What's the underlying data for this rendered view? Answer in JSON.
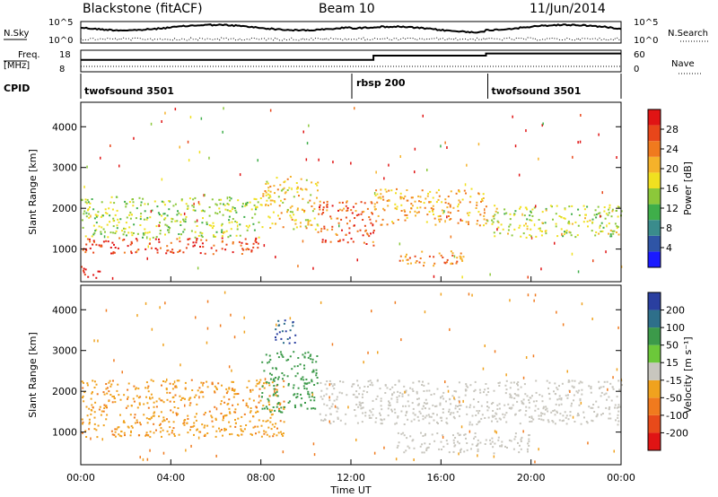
{
  "header": {
    "station": "Blackstone (fitACF)",
    "beam": "Beam 10",
    "date": "11/Jun/2014"
  },
  "noise_panel": {
    "left_label": "N.Sky",
    "right_label": "N.Search",
    "left_ticks": [
      "10^5",
      "10^0"
    ],
    "right_ticks": [
      "10^5",
      "10^0"
    ]
  },
  "freq_panel": {
    "left_label_line1": "Freq.",
    "left_label_line2": "[MHz]",
    "right_label": "Nave",
    "left_ticks": [
      "18",
      "8"
    ],
    "right_ticks": [
      "60",
      "0"
    ],
    "freq_steps": [
      {
        "from_hour": 0,
        "to_hour": 13,
        "level": 0.55
      },
      {
        "from_hour": 13,
        "to_hour": 18,
        "level": 0.75
      },
      {
        "from_hour": 18,
        "to_hour": 24,
        "level": 0.85
      }
    ]
  },
  "cpid": {
    "label": "CPID",
    "segments": [
      {
        "start_hour": 0,
        "name": "twofsound 3501"
      },
      {
        "start_hour": 12,
        "name": "rbsp 200"
      },
      {
        "start_hour": 18,
        "name": "twofsound 3501"
      }
    ]
  },
  "x_axis": {
    "label": "Time UT",
    "ticks": [
      "00:00",
      "04:00",
      "08:00",
      "12:00",
      "16:00",
      "20:00",
      "00:00"
    ],
    "range_hours": [
      0,
      24
    ]
  },
  "power_panel": {
    "ylabel": "Slant Range [km]",
    "yticks": [
      "1000",
      "2000",
      "3000",
      "4000"
    ],
    "colorbar_label": "Power [dB]",
    "colorbar_ticks": [
      "4",
      "8",
      "12",
      "16",
      "20",
      "24",
      "28"
    ],
    "colors": [
      "#1a1aff",
      "#2f55a6",
      "#3a8c8c",
      "#3fae4a",
      "#8cc83a",
      "#f0e020",
      "#f5b22a",
      "#f07a1e",
      "#e8461a",
      "#e01414"
    ]
  },
  "velocity_panel": {
    "ylabel": "Slant Range [km]",
    "yticks": [
      "1000",
      "2000",
      "3000",
      "4000"
    ],
    "colorbar_label": "Velocity [m s⁻¹]",
    "colorbar_ticks": [
      "200",
      "100",
      "50",
      "15",
      "-15",
      "-50",
      "-100",
      "-200"
    ],
    "colors": [
      "#2a3fa0",
      "#2e6f8a",
      "#3c9a4a",
      "#6cc83a",
      "#c8c6be",
      "#f0a21e",
      "#f07a1e",
      "#e84a1a",
      "#e01414"
    ]
  },
  "chart_data": {
    "type": "heatmap",
    "x_unit": "hours UT",
    "y_unit": "km",
    "xlim": [
      0,
      24
    ],
    "ylim": [
      200,
      4600
    ],
    "power_features": [
      {
        "t0": 0.0,
        "t1": 8.0,
        "r0": 900,
        "r1": 1300,
        "dB": 26
      },
      {
        "t0": 0.0,
        "t1": 8.0,
        "r0": 1300,
        "r1": 2300,
        "dB": 14
      },
      {
        "t0": 8.0,
        "t1": 10.5,
        "r0": 1500,
        "r1": 2800,
        "dB": 18
      },
      {
        "t0": 10.5,
        "t1": 13.0,
        "r0": 1100,
        "r1": 2200,
        "dB": 24
      },
      {
        "t0": 13.0,
        "t1": 18.0,
        "r0": 1600,
        "r1": 2500,
        "dB": 20
      },
      {
        "t0": 14.0,
        "t1": 17.0,
        "r0": 600,
        "r1": 1000,
        "dB": 22
      },
      {
        "t0": 18.0,
        "t1": 24.0,
        "r0": 1300,
        "r1": 2100,
        "dB": 15
      },
      {
        "t0": 0.0,
        "t1": 1.0,
        "r0": 300,
        "r1": 600,
        "dB": 28
      }
    ],
    "velocity_features": [
      {
        "t0": 0.0,
        "t1": 9.0,
        "r0": 900,
        "r1": 2300,
        "v": -30
      },
      {
        "t0": 8.0,
        "t1": 10.5,
        "r0": 1500,
        "r1": 3000,
        "v": 40
      },
      {
        "t0": 10.5,
        "t1": 24.0,
        "r0": 1200,
        "r1": 2300,
        "v": 0
      },
      {
        "t0": 14.0,
        "t1": 20.0,
        "r0": 500,
        "r1": 1000,
        "v": 0
      },
      {
        "t0": 8.5,
        "t1": 9.5,
        "r0": 3200,
        "r1": 3800,
        "v": 150
      }
    ]
  }
}
